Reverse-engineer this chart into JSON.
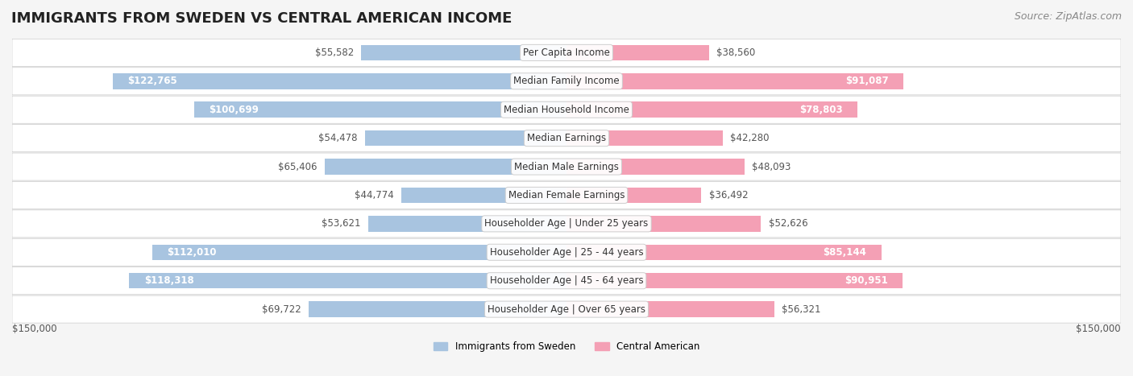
{
  "title": "IMMIGRANTS FROM SWEDEN VS CENTRAL AMERICAN INCOME",
  "source": "Source: ZipAtlas.com",
  "categories": [
    "Per Capita Income",
    "Median Family Income",
    "Median Household Income",
    "Median Earnings",
    "Median Male Earnings",
    "Median Female Earnings",
    "Householder Age | Under 25 years",
    "Householder Age | 25 - 44 years",
    "Householder Age | 45 - 64 years",
    "Householder Age | Over 65 years"
  ],
  "sweden_values": [
    55582,
    122765,
    100699,
    54478,
    65406,
    44774,
    53621,
    112010,
    118318,
    69722
  ],
  "central_values": [
    38560,
    91087,
    78803,
    42280,
    48093,
    36492,
    52626,
    85144,
    90951,
    56321
  ],
  "sweden_labels": [
    "$55,582",
    "$122,765",
    "$100,699",
    "$54,478",
    "$65,406",
    "$44,774",
    "$53,621",
    "$112,010",
    "$118,318",
    "$69,722"
  ],
  "central_labels": [
    "$38,560",
    "$91,087",
    "$78,803",
    "$42,280",
    "$48,093",
    "$36,492",
    "$52,626",
    "$85,144",
    "$90,951",
    "$56,321"
  ],
  "sweden_color": "#a8c4e0",
  "central_color": "#f4a0b5",
  "sweden_color_dark": "#7bafd4",
  "central_color_dark": "#f07090",
  "max_value": 150000,
  "sweden_legend": "Immigrants from Sweden",
  "central_legend": "Central American",
  "background_color": "#f5f5f5",
  "row_bg_color": "#ffffff",
  "title_fontsize": 13,
  "label_fontsize": 8.5,
  "value_fontsize": 8.5,
  "source_fontsize": 9
}
